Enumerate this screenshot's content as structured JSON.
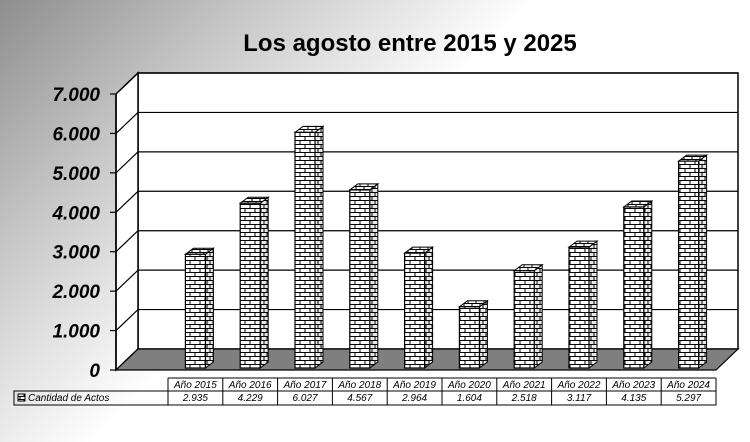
{
  "chart_data": {
    "type": "bar",
    "title": "Los agosto entre 2015 y 2025",
    "categories": [
      "Año 2015",
      "Año 2016",
      "Año 2017",
      "Año 2018",
      "Año 2019",
      "Año 2020",
      "Año 2021",
      "Año 2022",
      "Año 2023",
      "Año 2024"
    ],
    "series": [
      {
        "name": "Cantidad de Actos",
        "values": [
          2935,
          4229,
          6027,
          4567,
          2964,
          1604,
          2518,
          3117,
          4135,
          5297
        ],
        "labels": [
          "2.935",
          "4.229",
          "6.027",
          "4.567",
          "2.964",
          "1.604",
          "2.518",
          "3.117",
          "4.135",
          "5.297"
        ]
      }
    ],
    "yticks": [
      "0",
      "1.000",
      "2.000",
      "3.000",
      "4.000",
      "5.000",
      "6.000",
      "7.000"
    ],
    "ylim": [
      0,
      7000
    ],
    "grid": true,
    "legend": "data table",
    "pattern": "brick",
    "colors": {
      "bar_face": "#ffffff",
      "brick_line": "#000000",
      "floor": "#7f7f7f",
      "plot_background": "#ffffff"
    }
  }
}
